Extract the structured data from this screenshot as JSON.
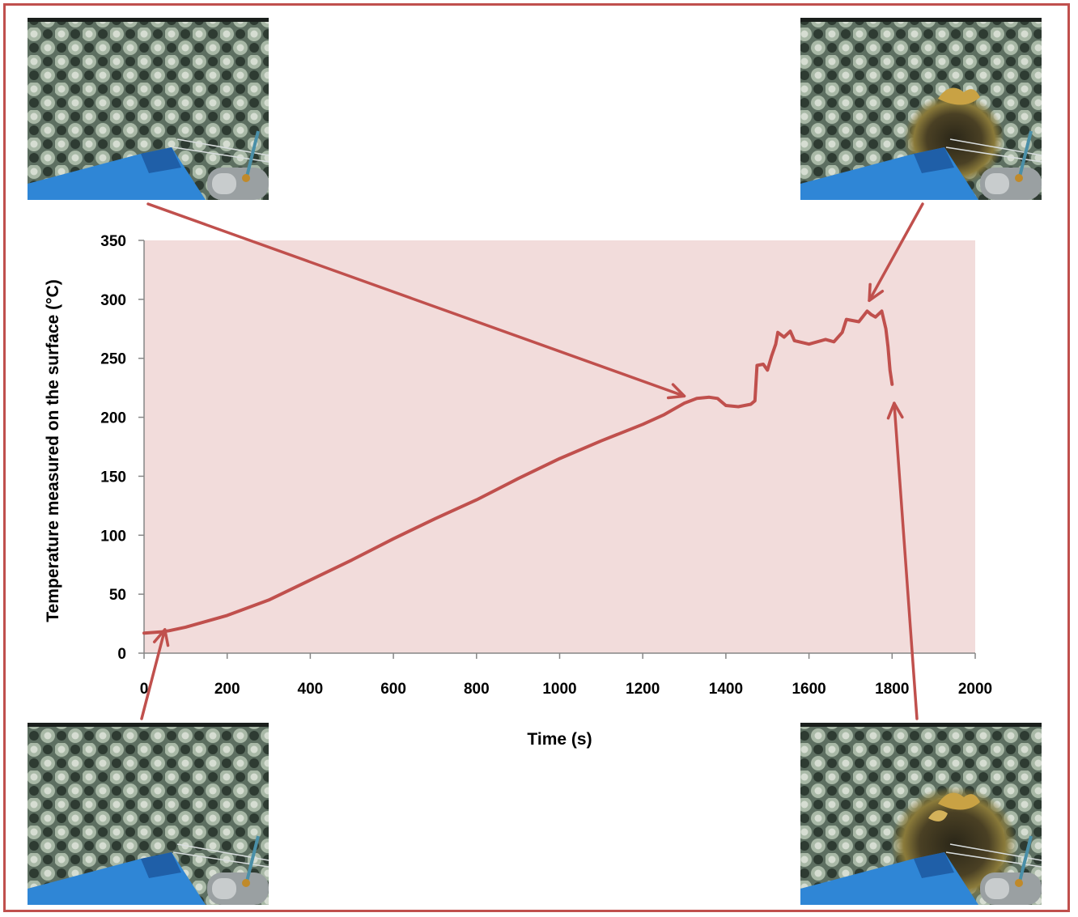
{
  "chart_data": {
    "type": "line",
    "title": "",
    "xlabel": "Time (s)",
    "ylabel": "Temperature measured on the surface (°C)",
    "xlim": [
      0,
      2000
    ],
    "ylim": [
      0,
      350
    ],
    "x_ticks": [
      0,
      200,
      400,
      600,
      800,
      1000,
      1200,
      1400,
      1600,
      1800,
      2000
    ],
    "y_ticks": [
      0,
      50,
      100,
      150,
      200,
      250,
      300,
      350
    ],
    "grid": false,
    "legend": "none",
    "plot_background": "#f2dcdb",
    "series": [
      {
        "color": "#c0504d",
        "points": [
          [
            0,
            17
          ],
          [
            40,
            18
          ],
          [
            60,
            19
          ],
          [
            100,
            22
          ],
          [
            150,
            27
          ],
          [
            200,
            32
          ],
          [
            300,
            45
          ],
          [
            400,
            62
          ],
          [
            500,
            79
          ],
          [
            600,
            97
          ],
          [
            700,
            114
          ],
          [
            800,
            130
          ],
          [
            900,
            148
          ],
          [
            1000,
            165
          ],
          [
            1100,
            180
          ],
          [
            1200,
            194
          ],
          [
            1250,
            202
          ],
          [
            1300,
            212
          ],
          [
            1330,
            216
          ],
          [
            1360,
            217
          ],
          [
            1380,
            216
          ],
          [
            1400,
            210
          ],
          [
            1430,
            209
          ],
          [
            1460,
            211
          ],
          [
            1470,
            214
          ],
          [
            1475,
            244
          ],
          [
            1490,
            245
          ],
          [
            1500,
            240
          ],
          [
            1510,
            252
          ],
          [
            1520,
            262
          ],
          [
            1525,
            272
          ],
          [
            1540,
            268
          ],
          [
            1555,
            273
          ],
          [
            1565,
            265
          ],
          [
            1600,
            262
          ],
          [
            1640,
            266
          ],
          [
            1660,
            264
          ],
          [
            1680,
            272
          ],
          [
            1690,
            283
          ],
          [
            1720,
            281
          ],
          [
            1740,
            290
          ],
          [
            1750,
            287
          ],
          [
            1760,
            285
          ],
          [
            1775,
            290
          ],
          [
            1785,
            275
          ],
          [
            1790,
            260
          ],
          [
            1795,
            240
          ],
          [
            1800,
            228
          ]
        ]
      }
    ]
  },
  "images": [
    {
      "name": "foam-photo-initial",
      "description_icon": "foam-sample-photo-icon"
    },
    {
      "name": "foam-photo-mid",
      "description_icon": "foam-sample-photo-icon"
    },
    {
      "name": "foam-photo-burnt",
      "description_icon": "foam-sample-photo-icon"
    },
    {
      "name": "foam-photo-final",
      "description_icon": "foam-sample-photo-icon"
    }
  ],
  "annotations": {
    "arrow_color": "#c0504d",
    "arrows": [
      {
        "from_image": "foam-photo-initial",
        "to_point": [
          50,
          20
        ]
      },
      {
        "from_image": "foam-photo-mid",
        "to_point": [
          1300,
          218
        ]
      },
      {
        "from_image": "foam-photo-burnt",
        "to_point": [
          1745,
          299
        ]
      },
      {
        "from_image": "foam-photo-final",
        "to_point": [
          1805,
          212
        ]
      }
    ]
  }
}
